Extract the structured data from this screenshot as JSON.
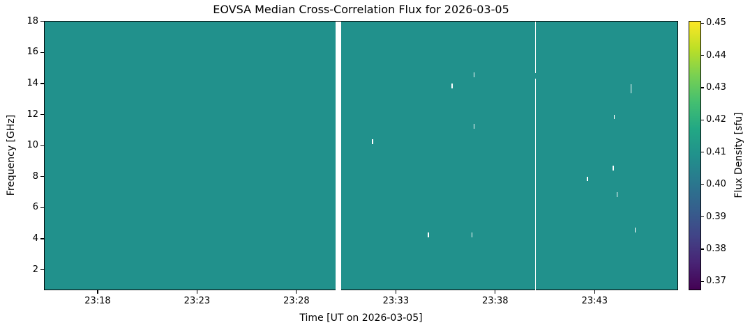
{
  "chart_data": {
    "type": "heatmap",
    "title": "EOVSA Median Cross-Correlation Flux for 2026-03-05",
    "xlabel": "Time [UT on 2026-03-05]",
    "ylabel": "Frequency [GHz]",
    "colorbar_label": "Flux Density [sfu]",
    "grid": false,
    "x_axis": {
      "unit": "UT minutes after 23:00 on 2026-03-05",
      "t_min": 15.3,
      "t_max": 47.2,
      "ticks": [
        {
          "label": "23:18",
          "t": 18
        },
        {
          "label": "23:23",
          "t": 23
        },
        {
          "label": "23:28",
          "t": 28
        },
        {
          "label": "23:33",
          "t": 33
        },
        {
          "label": "23:38",
          "t": 38
        },
        {
          "label": "23:43",
          "t": 43
        }
      ]
    },
    "y_axis": {
      "unit": "GHz",
      "min": 0.68,
      "max": 18.04,
      "ticks": [
        2,
        4,
        6,
        8,
        10,
        12,
        14,
        16,
        18
      ]
    },
    "colorbar": {
      "vmin": 0.3673,
      "vmax": 0.4507,
      "ticks": [
        "0.37",
        "0.38",
        "0.39",
        "0.40",
        "0.41",
        "0.42",
        "0.43",
        "0.44",
        "0.45"
      ],
      "colormap": "viridis",
      "gradient_stops": [
        "#440154",
        "#482475",
        "#414487",
        "#355f8d",
        "#2a788e",
        "#21918c",
        "#22a884",
        "#44bf70",
        "#7ad151",
        "#bddf26",
        "#fde725"
      ]
    },
    "background": {
      "value_sfu": 0.41,
      "color": "#21918c",
      "note": "uniform median flux density of about 0.41 sfu over nearly the whole time-frequency plane"
    },
    "data_gaps": [
      {
        "kind": "wide-gap",
        "time_ut": "23:30",
        "t0": 29.93,
        "t1": 30.21,
        "f0": 0.68,
        "f1": 18.04
      },
      {
        "kind": "thin-line",
        "time_ut": "23:40",
        "t0": 39.97,
        "t1": 40.02,
        "f0": 14.72,
        "f1": 18.04
      },
      {
        "kind": "thin-line",
        "time_ut": "23:40",
        "t0": 39.97,
        "t1": 40.02,
        "f0": 0.68,
        "f1": 14.36
      }
    ],
    "anomaly_marks": [
      {
        "time_ut": "23:31.8",
        "t": 31.8,
        "freq_ghz": 10.3
      },
      {
        "time_ut": "23:34.6",
        "t": 34.6,
        "freq_ghz": 4.3
      },
      {
        "time_ut": "23:35.8",
        "t": 35.8,
        "freq_ghz": 13.9
      },
      {
        "time_ut": "23:36.8",
        "t": 36.8,
        "freq_ghz": 4.3
      },
      {
        "time_ut": "23:36.9",
        "t": 36.9,
        "freq_ghz": 14.6
      },
      {
        "time_ut": "23:36.9",
        "t": 36.9,
        "freq_ghz": 11.3
      },
      {
        "time_ut": "23:42.6",
        "t": 42.6,
        "freq_ghz": 7.9
      },
      {
        "time_ut": "23:43.9",
        "t": 43.9,
        "freq_ghz": 8.6
      },
      {
        "time_ut": "23:43.9",
        "t": 43.95,
        "freq_ghz": 11.9
      },
      {
        "time_ut": "23:44.1",
        "t": 44.1,
        "freq_ghz": 6.9
      },
      {
        "time_ut": "23:44.8",
        "t": 44.8,
        "freq_ghz": 13.7,
        "span_ghz": 0.6
      },
      {
        "time_ut": "23:45.0",
        "t": 45.0,
        "freq_ghz": 4.6
      }
    ]
  }
}
